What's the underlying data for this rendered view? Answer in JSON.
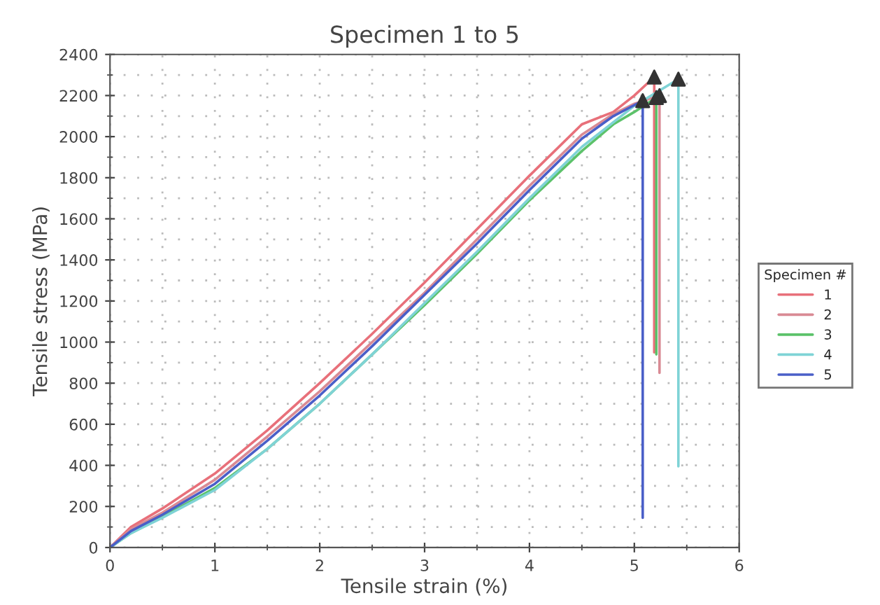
{
  "chart_data": {
    "type": "line",
    "title": "Specimen 1 to 5",
    "xlabel": "Tensile strain (%)",
    "ylabel": "Tensile stress (MPa)",
    "legend_title": "Specimen #",
    "legend": "right",
    "grid": true,
    "xlim": [
      0,
      6
    ],
    "xticks": [
      0,
      1,
      2,
      3,
      4,
      5,
      6
    ],
    "ylim": [
      0,
      2400
    ],
    "yticks": [
      0,
      200,
      400,
      600,
      800,
      1000,
      1200,
      1400,
      1600,
      1800,
      2000,
      2200,
      2400
    ],
    "series": [
      {
        "name": "1",
        "color": "#e8707a",
        "x": [
          0,
          0.2,
          0.5,
          1,
          1.5,
          2,
          2.5,
          3,
          3.5,
          4,
          4.5,
          4.8,
          5.0,
          5.19,
          5.19
        ],
        "values": [
          0,
          100,
          190,
          360,
          570,
          800,
          1040,
          1290,
          1550,
          1810,
          2060,
          2120,
          2200,
          2290,
          950
        ]
      },
      {
        "name": "2",
        "color": "#d98a94",
        "x": [
          0,
          0.2,
          0.5,
          1,
          1.5,
          2,
          2.5,
          3,
          3.5,
          4,
          4.5,
          4.8,
          5.0,
          5.24,
          5.24
        ],
        "values": [
          0,
          90,
          170,
          330,
          540,
          760,
          1000,
          1240,
          1500,
          1760,
          2010,
          2110,
          2160,
          2200,
          850
        ]
      },
      {
        "name": "3",
        "color": "#5cc26a",
        "x": [
          0,
          0.2,
          0.5,
          1,
          1.5,
          2,
          2.5,
          3,
          3.5,
          4,
          4.5,
          4.8,
          5.0,
          5.21,
          5.21
        ],
        "values": [
          0,
          70,
          150,
          290,
          480,
          700,
          940,
          1180,
          1430,
          1690,
          1930,
          2060,
          2120,
          2190,
          940
        ]
      },
      {
        "name": "4",
        "color": "#7fd3d6",
        "x": [
          0,
          0.2,
          0.5,
          1,
          1.5,
          2,
          2.5,
          3,
          3.5,
          4,
          4.5,
          5.0,
          5.42,
          5.42
        ],
        "values": [
          0,
          70,
          145,
          280,
          480,
          700,
          940,
          1190,
          1440,
          1700,
          1950,
          2150,
          2280,
          395
        ]
      },
      {
        "name": "5",
        "color": "#4a5fc8",
        "x": [
          0,
          0.2,
          0.5,
          1,
          1.5,
          2,
          2.5,
          3,
          3.5,
          4,
          4.5,
          4.8,
          5.08,
          5.08
        ],
        "values": [
          0,
          80,
          160,
          310,
          520,
          740,
          980,
          1230,
          1480,
          1740,
          1990,
          2100,
          2175,
          145
        ]
      },
      {
        "type": "scatter",
        "color": "#333333",
        "marker": "triangle",
        "x": [
          5.19,
          5.24,
          5.21,
          5.42,
          5.08
        ],
        "values": [
          2290,
          2200,
          2190,
          2280,
          2175
        ]
      }
    ]
  }
}
